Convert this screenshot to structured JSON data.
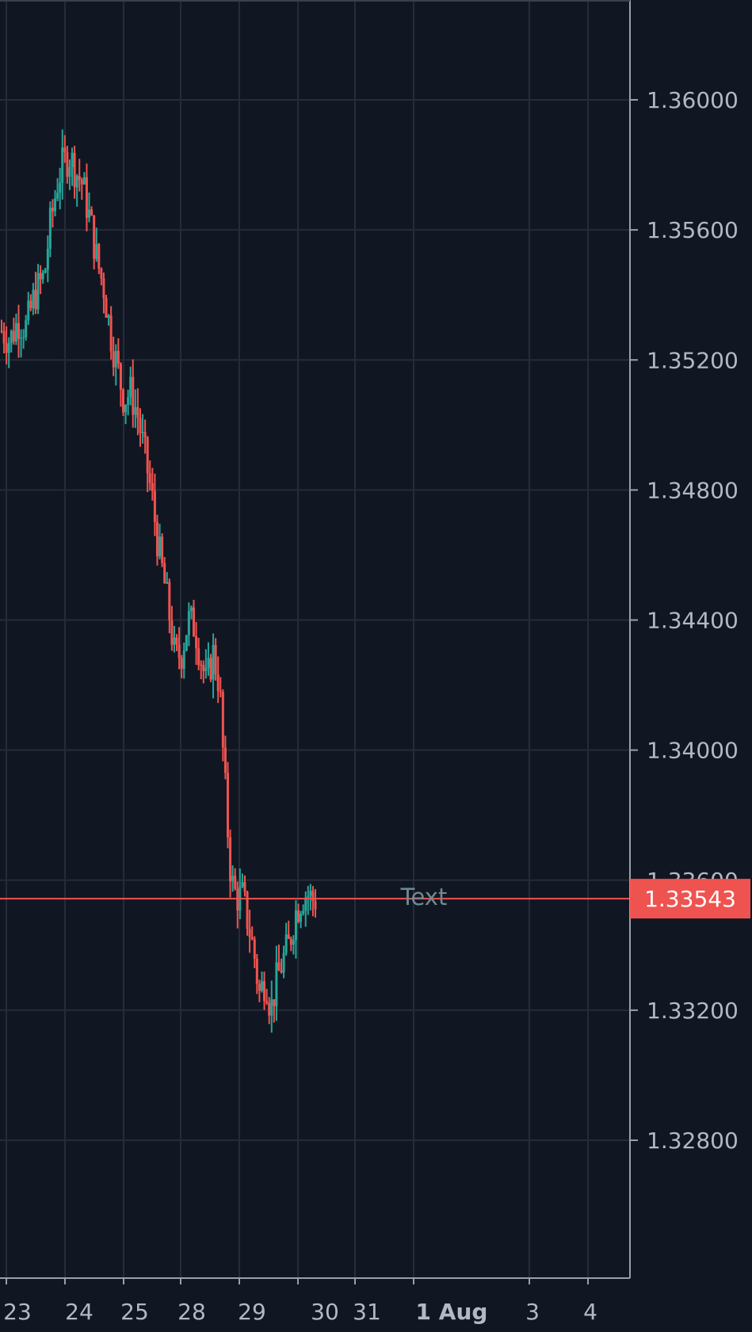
{
  "chart_data": {
    "type": "candlestick",
    "title": "",
    "xlabel": "",
    "ylabel": "",
    "ylim": [
      1.328,
      1.3616
    ],
    "grid": true,
    "y_ticks": [
      "1.36000",
      "1.35600",
      "1.35200",
      "1.34800",
      "1.34400",
      "1.34000",
      "1.33600",
      "1.33200",
      "1.32800"
    ],
    "x_ticks": [
      {
        "label": "23",
        "bold": false
      },
      {
        "label": "24",
        "bold": false
      },
      {
        "label": "25",
        "bold": false
      },
      {
        "label": "28",
        "bold": false
      },
      {
        "label": "29",
        "bold": false
      },
      {
        "label": "30",
        "bold": false
      },
      {
        "label": "31",
        "bold": false
      },
      {
        "label": "1 Aug",
        "bold": true
      },
      {
        "label": "3",
        "bold": false
      },
      {
        "label": "4",
        "bold": false
      }
    ],
    "current_price": {
      "value": 1.33543,
      "label": "1.33543"
    },
    "annotation": {
      "text": "Text"
    },
    "colors": {
      "up": "#26a69a",
      "down": "#ef5350",
      "background": "#111722",
      "grid": "#252c38",
      "axis": "#9aa0ab",
      "price_line": "#ef5350"
    },
    "series_points": [
      [
        0.0,
        1.3529
      ],
      [
        0.5,
        1.3526
      ],
      [
        1.0,
        1.3532
      ],
      [
        1.5,
        1.353
      ],
      [
        2.0,
        1.354
      ],
      [
        2.6,
        1.3546
      ],
      [
        2.9,
        1.356
      ],
      [
        3.4,
        1.3575
      ],
      [
        3.7,
        1.358
      ],
      [
        4.1,
        1.3583
      ],
      [
        4.5,
        1.3578
      ],
      [
        4.9,
        1.3574
      ],
      [
        5.4,
        1.3562
      ],
      [
        5.8,
        1.355
      ],
      [
        6.2,
        1.3542
      ],
      [
        6.6,
        1.3528
      ],
      [
        7.0,
        1.3518
      ],
      [
        7.4,
        1.3508
      ],
      [
        7.8,
        1.351
      ],
      [
        8.2,
        1.3504
      ],
      [
        8.7,
        1.349
      ],
      [
        9.1,
        1.3478
      ],
      [
        9.5,
        1.3462
      ],
      [
        9.9,
        1.345
      ],
      [
        10.2,
        1.344
      ],
      [
        10.5,
        1.3428
      ],
      [
        10.9,
        1.343
      ],
      [
        11.3,
        1.344
      ],
      [
        11.7,
        1.3438
      ],
      [
        12.0,
        1.343
      ],
      [
        12.4,
        1.342
      ],
      [
        12.8,
        1.343
      ],
      [
        13.2,
        1.342
      ],
      [
        13.4,
        1.34
      ],
      [
        13.7,
        1.3375
      ],
      [
        13.9,
        1.336
      ],
      [
        14.2,
        1.3355
      ],
      [
        14.6,
        1.3355
      ],
      [
        15.0,
        1.3345
      ],
      [
        15.3,
        1.3337
      ],
      [
        15.6,
        1.3325
      ],
      [
        16.0,
        1.333
      ],
      [
        16.3,
        1.332
      ],
      [
        16.6,
        1.3328
      ],
      [
        17.0,
        1.3335
      ],
      [
        17.4,
        1.334
      ],
      [
        17.8,
        1.335
      ],
      [
        18.2,
        1.3355
      ],
      [
        18.5,
        1.3356
      ],
      [
        18.8,
        1.3354
      ]
    ],
    "series_x_range": [
      0,
      19
    ]
  }
}
